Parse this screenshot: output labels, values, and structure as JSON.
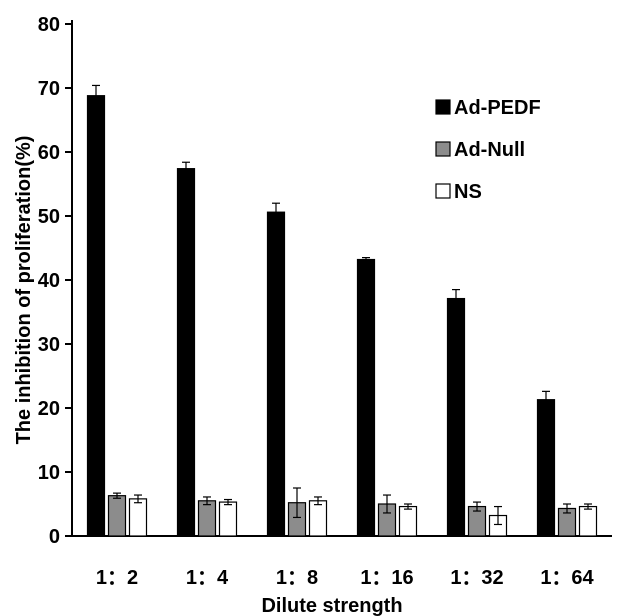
{
  "chart_data": {
    "type": "bar",
    "categories": [
      "1：2",
      "1：4",
      "1：8",
      "1：16",
      "1：32",
      "1：64"
    ],
    "series": [
      {
        "name": "Ad-PEDF",
        "color": "#000000",
        "values": [
          68.8,
          57.4,
          50.6,
          43.2,
          37.1,
          21.3
        ],
        "errors": [
          1.6,
          1.0,
          1.4,
          0.3,
          1.4,
          1.3
        ]
      },
      {
        "name": "Ad-Null",
        "color": "#8c8c8c",
        "values": [
          6.3,
          5.5,
          5.2,
          5.0,
          4.6,
          4.3
        ],
        "errors": [
          0.4,
          0.6,
          2.3,
          1.4,
          0.7,
          0.7
        ]
      },
      {
        "name": "NS",
        "color": "#ffffff",
        "values": [
          5.8,
          5.3,
          5.5,
          4.6,
          3.2,
          4.6
        ],
        "errors": [
          0.6,
          0.4,
          0.6,
          0.4,
          1.4,
          0.4
        ]
      }
    ],
    "title": "",
    "xlabel": "Dilute strength",
    "ylabel": "The inhibition of proliferation(%)",
    "ylim": [
      0,
      80
    ],
    "yticks": [
      "0",
      "10",
      "20",
      "30",
      "40",
      "50",
      "60",
      "70",
      "80"
    ],
    "grid": false,
    "legend_position": "top-right"
  }
}
